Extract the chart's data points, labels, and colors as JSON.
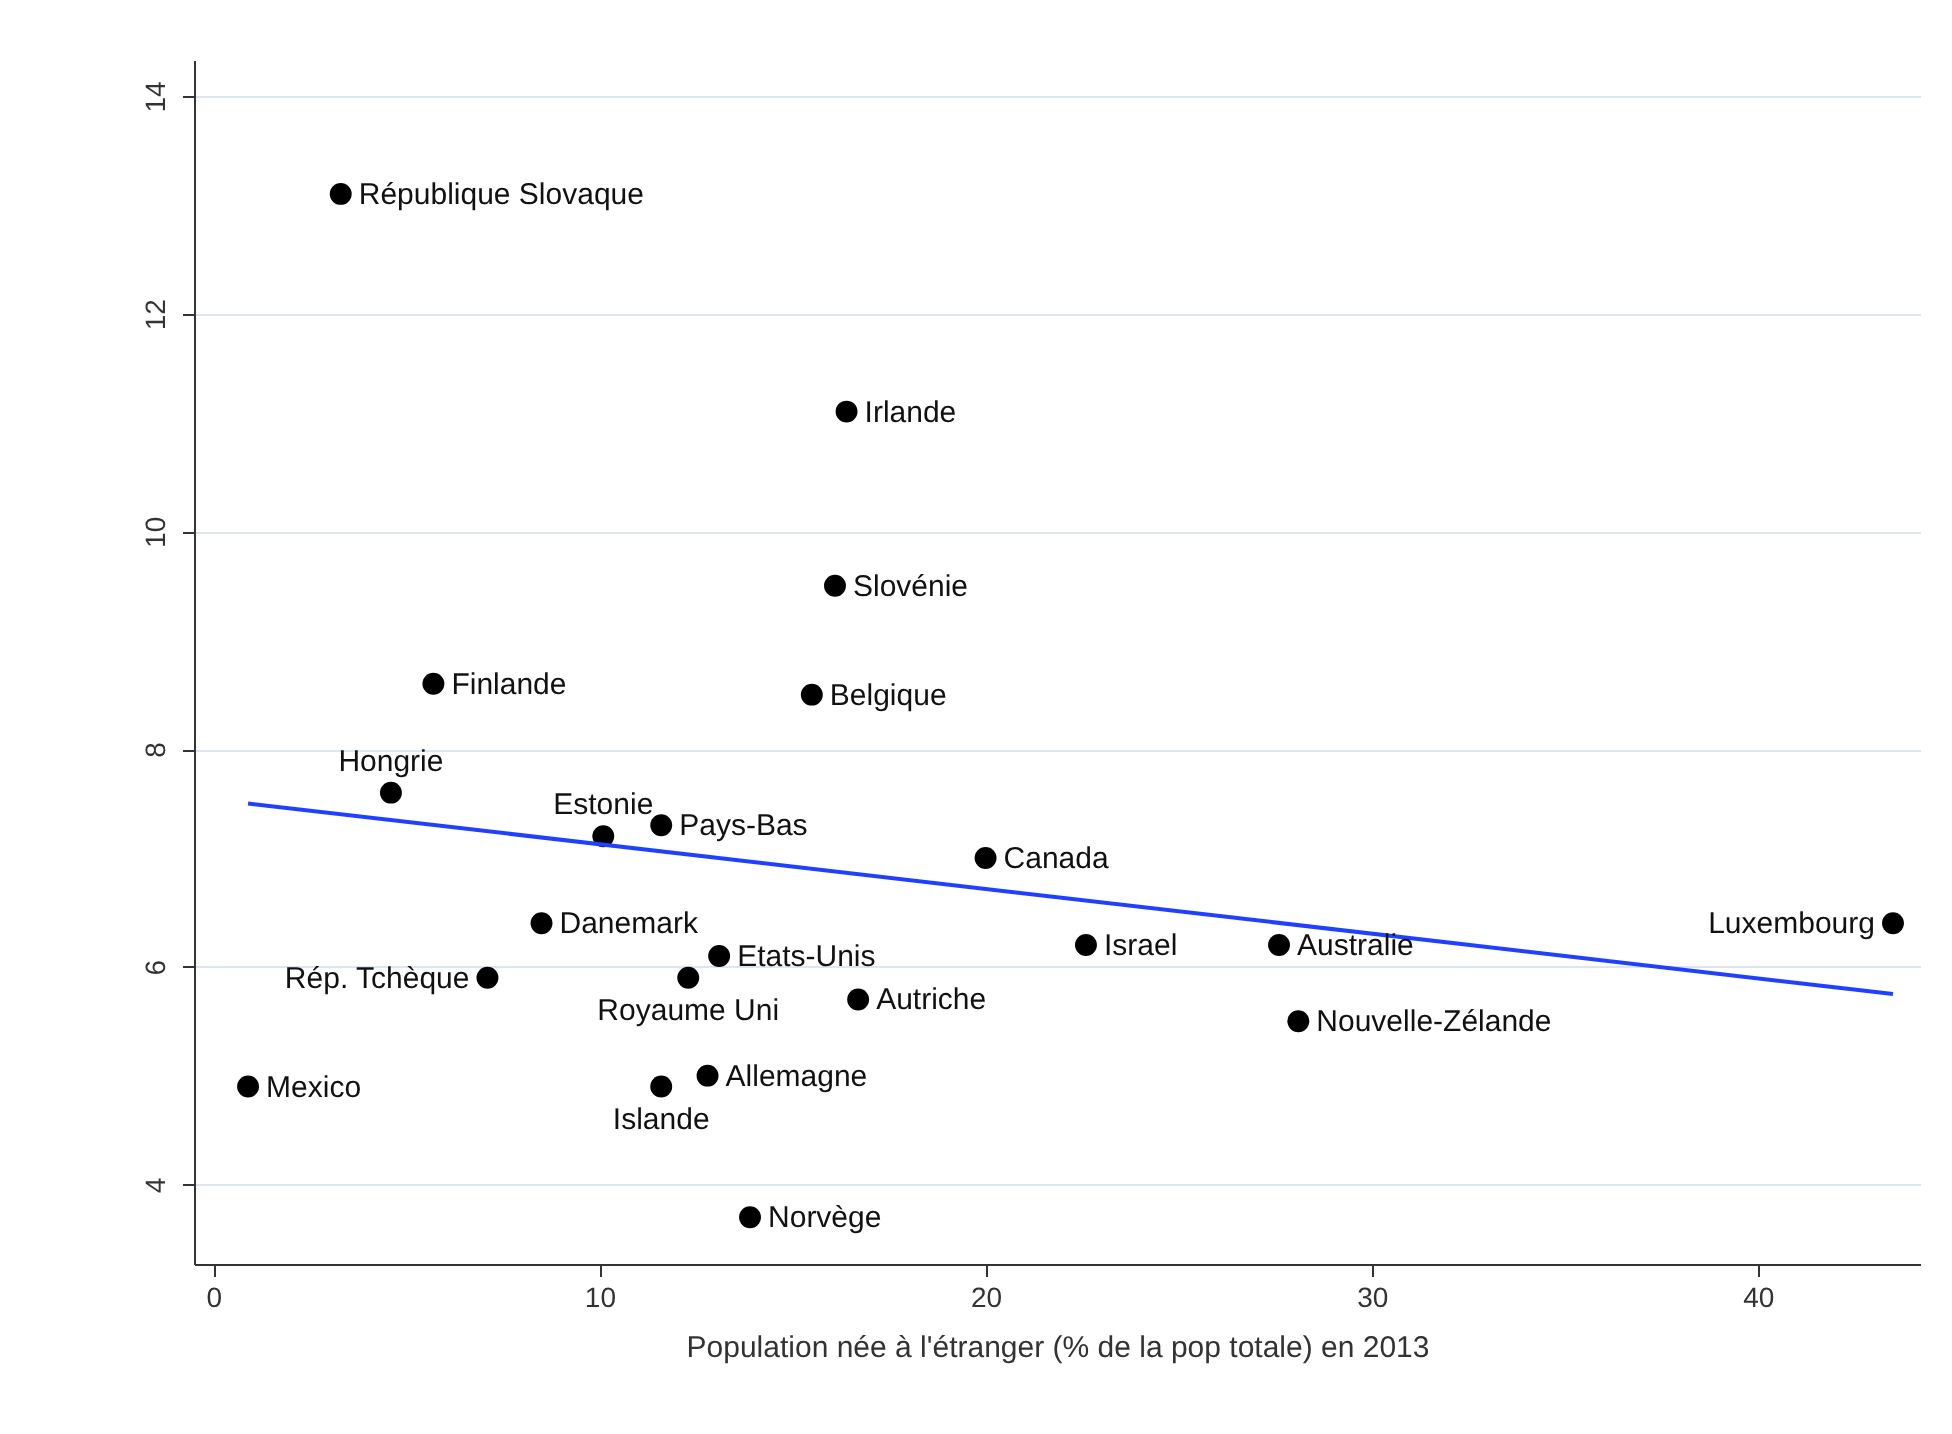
{
  "chart_data": {
    "type": "scatter",
    "xlabel": "Population née à l'étranger (% de la pop totale) en 2013",
    "xlim": [
      -0.5,
      44.2
    ],
    "ylim": [
      3.27,
      14.33
    ],
    "xticks": [
      0,
      10,
      20,
      30,
      40
    ],
    "yticks": [
      4,
      6,
      8,
      10,
      12,
      14
    ],
    "grid": "y",
    "series": [
      {
        "color": "#000000",
        "marker": "circle",
        "x": [
          3.3,
          16.4,
          16.1,
          5.7,
          15.5,
          4.6,
          10.1,
          11.6,
          20.0,
          8.5,
          13.1,
          7.1,
          12.3,
          22.6,
          27.6,
          43.5,
          16.7,
          28.1,
          0.9,
          12.8,
          11.6,
          13.9
        ],
        "values": [
          13.1,
          11.1,
          9.5,
          8.6,
          8.5,
          7.6,
          7.2,
          7.3,
          7.0,
          6.4,
          6.1,
          5.9,
          5.9,
          6.2,
          6.2,
          6.4,
          5.7,
          5.5,
          4.9,
          5.0,
          4.9,
          3.7
        ]
      },
      {
        "type": "line",
        "marker": "none",
        "color": "#2040ff",
        "x": [
          0.9,
          43.5
        ],
        "values": [
          7.5,
          5.75
        ]
      }
    ],
    "annotations": [
      {
        "text": "République Slovaque",
        "x": 3.3,
        "y": 13.1
      },
      {
        "text": "Irlande",
        "x": 16.4,
        "y": 11.1
      },
      {
        "text": "Slovénie",
        "x": 16.1,
        "y": 9.5
      },
      {
        "text": "Finlande",
        "x": 5.7,
        "y": 8.6
      },
      {
        "text": "Belgique",
        "x": 15.5,
        "y": 8.5
      },
      {
        "text": "Hongrie",
        "x": 4.6,
        "y": 7.6
      },
      {
        "text": "Estonie",
        "x": 10.1,
        "y": 7.2
      },
      {
        "text": "Pays-Bas",
        "x": 11.6,
        "y": 7.3
      },
      {
        "text": "Canada",
        "x": 20.0,
        "y": 7.0
      },
      {
        "text": "Danemark",
        "x": 8.5,
        "y": 6.4
      },
      {
        "text": "Etats-Unis",
        "x": 13.1,
        "y": 6.1
      },
      {
        "text": "Rép. Tchèque",
        "x": 7.1,
        "y": 5.9
      },
      {
        "text": "Royaume Uni",
        "x": 12.3,
        "y": 5.9
      },
      {
        "text": "Israel",
        "x": 22.6,
        "y": 6.2
      },
      {
        "text": "Australie",
        "x": 27.6,
        "y": 6.2
      },
      {
        "text": "Luxembourg",
        "x": 43.5,
        "y": 6.4
      },
      {
        "text": "Autriche",
        "x": 16.7,
        "y": 5.7
      },
      {
        "text": "Nouvelle-Zélande",
        "x": 28.1,
        "y": 5.5
      },
      {
        "text": "Mexico",
        "x": 0.9,
        "y": 4.9
      },
      {
        "text": "Allemagne",
        "x": 12.8,
        "y": 5.0
      },
      {
        "text": "Islande",
        "x": 11.6,
        "y": 4.9
      },
      {
        "text": "Norvège",
        "x": 13.9,
        "y": 3.7
      }
    ]
  }
}
